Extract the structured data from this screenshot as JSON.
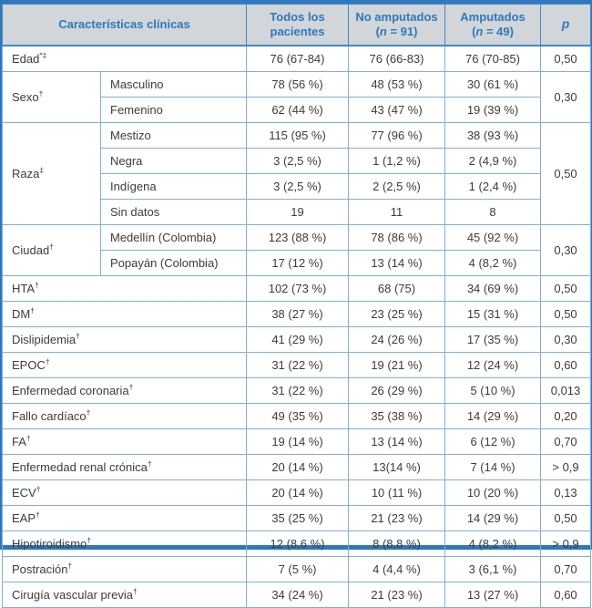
{
  "colors": {
    "frame": "#2e78bb",
    "head-border": "#4289c6",
    "body-border": "#7fb0d8",
    "head-bg": "#d2d5d9",
    "head-text": "#2d79be",
    "body-text": "#3c3c3c"
  },
  "table": {
    "columns": {
      "characteristics": "Características clínicas",
      "all_patients": "Todos los pacientes",
      "no_amputees": {
        "title": "No amputados",
        "n_open": "(",
        "n_symbol": "n",
        "n_rest": " = 91)"
      },
      "amputees": {
        "title": "Amputados",
        "n_open": "(",
        "n_symbol": "n",
        "n_rest": " = 49)"
      },
      "p": "p"
    },
    "rows": [
      {
        "type": "single",
        "label": "Edad",
        "sup": "*‡",
        "values": [
          "76 (67-84)",
          "76 (66-83)",
          "76 (70-85)"
        ],
        "p": "0,50"
      },
      {
        "type": "group",
        "label": "Sexo",
        "sup": "†",
        "p": "0,30",
        "subrows": [
          {
            "label": "Masculino",
            "values": [
              "78 (56 %)",
              "48 (53 %)",
              "30 (61 %)"
            ]
          },
          {
            "label": "Femenino",
            "values": [
              "62 (44 %)",
              "43 (47 %)",
              "19 (39 %)"
            ]
          }
        ]
      },
      {
        "type": "group",
        "label": "Raza",
        "sup": "‡",
        "p": "0,50",
        "subrows": [
          {
            "label": "Mestizo",
            "values": [
              "115 (95 %)",
              "77 (96 %)",
              "38 (93 %)"
            ]
          },
          {
            "label": "Negra",
            "values": [
              "3 (2,5 %)",
              "1 (1,2 %)",
              "2 (4,9 %)"
            ]
          },
          {
            "label": "Indígena",
            "values": [
              "3 (2,5 %)",
              "2 (2,5 %)",
              "1 (2,4 %)"
            ]
          },
          {
            "label": "Sin datos",
            "values": [
              "19",
              "11",
              "8"
            ]
          }
        ]
      },
      {
        "type": "group",
        "label": "Ciudad",
        "sup": "†",
        "p": "0,30",
        "subrows": [
          {
            "label": "Medellín (Colombia)",
            "values": [
              "123 (88 %)",
              "78 (86 %)",
              "45 (92 %)"
            ]
          },
          {
            "label": "Popayán (Colombia)",
            "values": [
              "17 (12 %)",
              "13 (14 %)",
              "4 (8,2 %)"
            ]
          }
        ]
      },
      {
        "type": "single",
        "label": "HTA",
        "sup": "†",
        "values": [
          "102 (73 %)",
          "68 (75)",
          "34 (69 %)"
        ],
        "p": "0,50"
      },
      {
        "type": "single",
        "label": "DM",
        "sup": "†",
        "values": [
          "38 (27 %)",
          "23 (25 %)",
          "15 (31 %)"
        ],
        "p": "0,50"
      },
      {
        "type": "single",
        "label": "Dislipidemia",
        "sup": "†",
        "values": [
          "41 (29 %)",
          "24 (26 %)",
          "17 (35 %)"
        ],
        "p": "0,30"
      },
      {
        "type": "single",
        "label": "EPOC",
        "sup": "†",
        "values": [
          "31 (22 %)",
          "19 (21 %)",
          "12 (24 %)"
        ],
        "p": "0,60"
      },
      {
        "type": "single",
        "label": "Enfermedad coronaria",
        "sup": "†",
        "values": [
          "31 (22 %)",
          "26 (29 %)",
          "5 (10 %)"
        ],
        "p": "0,013"
      },
      {
        "type": "single",
        "label": "Fallo cardíaco",
        "sup": "†",
        "values": [
          "49 (35 %)",
          "35 (38 %)",
          "14 (29 %)"
        ],
        "p": "0,20"
      },
      {
        "type": "single",
        "label": "FA",
        "sup": "†",
        "values": [
          "19 (14 %)",
          "13 (14 %)",
          "6 (12 %)"
        ],
        "p": "0,70"
      },
      {
        "type": "single",
        "label": "Enfermedad renal crónica",
        "sup": "†",
        "values": [
          "20 (14 %)",
          "13(14 %)",
          "7 (14 %)"
        ],
        "p": "> 0,9"
      },
      {
        "type": "single",
        "label": "ECV",
        "sup": "†",
        "values": [
          "20 (14 %)",
          "10 (11 %)",
          "10 (20 %)"
        ],
        "p": "0,13"
      },
      {
        "type": "single",
        "label": "EAP",
        "sup": "†",
        "values": [
          "35 (25 %)",
          "21 (23 %)",
          "14 (29 %)"
        ],
        "p": "0,50"
      },
      {
        "type": "single",
        "label": "Hipotiroidismo",
        "sup": "†",
        "values": [
          "12 (8,6 %)",
          "8 (8,8 %)",
          "4 (8,2 %)"
        ],
        "p": "> 0,9"
      },
      {
        "type": "single",
        "label": "Postración",
        "sup": "†",
        "values": [
          "7 (5 %)",
          "4 (4,4 %)",
          "3 (6,1 %)"
        ],
        "p": "0,70"
      },
      {
        "type": "single",
        "label": "Cirugía vascular previa",
        "sup": "†",
        "values": [
          "34 (24 %)",
          "21 (23 %)",
          "13 (27 %)"
        ],
        "p": "0,60"
      }
    ]
  }
}
